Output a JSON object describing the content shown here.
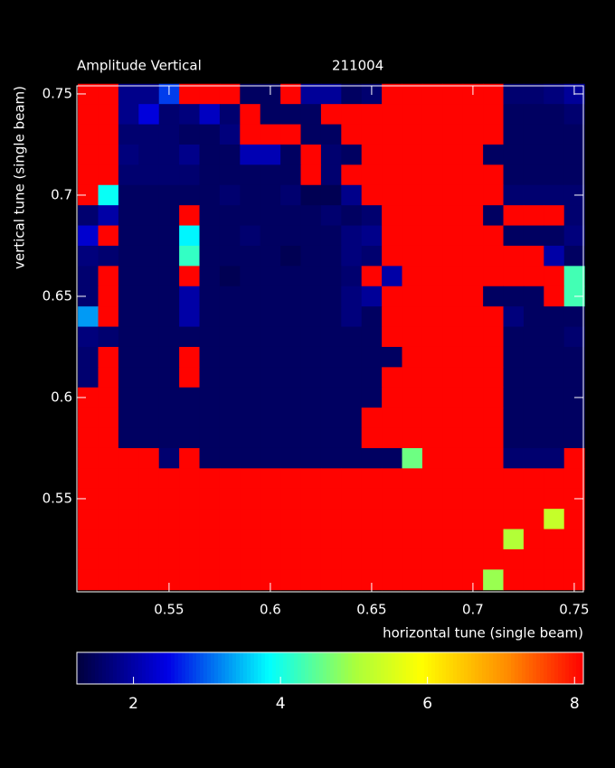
{
  "chart_data": {
    "type": "heatmap",
    "title": "Amplitude Vertical",
    "subtitle": "211004",
    "x_label": "horizontal tune (single beam)",
    "y_label": "vertical tune (single beam)",
    "colormap": "jet",
    "x": [
      0.51,
      0.52,
      0.53,
      0.54,
      0.55,
      0.56,
      0.57,
      0.58,
      0.59,
      0.6,
      0.61,
      0.62,
      0.63,
      0.64,
      0.65,
      0.66,
      0.67,
      0.68,
      0.69,
      0.7,
      0.71,
      0.72,
      0.73,
      0.74,
      0.75
    ],
    "y": [
      0.75,
      0.74,
      0.73,
      0.72,
      0.71,
      0.7,
      0.69,
      0.68,
      0.67,
      0.66,
      0.65,
      0.64,
      0.63,
      0.62,
      0.61,
      0.6,
      0.59,
      0.58,
      0.57,
      0.56,
      0.55,
      0.54,
      0.53,
      0.52,
      0.51
    ],
    "z": [
      [
        8.1,
        8.1,
        1.8,
        1.8,
        2.8,
        8.1,
        8.1,
        8.1,
        1.5,
        1.5,
        8.1,
        1.9,
        1.9,
        1.5,
        1.6,
        8.1,
        8.1,
        8.1,
        8.1,
        8.1,
        8.1,
        1.6,
        1.6,
        1.7,
        1.9
      ],
      [
        8.1,
        8.1,
        1.8,
        2.4,
        1.6,
        1.7,
        2.2,
        1.6,
        8.1,
        1.5,
        1.5,
        1.5,
        8.1,
        8.1,
        8.1,
        8.1,
        8.1,
        8.1,
        8.1,
        8.1,
        8.1,
        1.5,
        1.5,
        1.5,
        1.6
      ],
      [
        8.1,
        8.1,
        1.6,
        1.6,
        1.6,
        1.5,
        1.5,
        1.7,
        8.1,
        8.1,
        8.1,
        1.5,
        1.5,
        8.1,
        8.1,
        8.1,
        8.1,
        8.1,
        8.1,
        8.1,
        8.1,
        1.5,
        1.5,
        1.5,
        1.5
      ],
      [
        8.1,
        8.1,
        1.7,
        1.6,
        1.6,
        1.8,
        1.5,
        1.5,
        2.1,
        2.1,
        1.5,
        8.1,
        1.6,
        1.5,
        8.1,
        8.1,
        8.1,
        8.1,
        8.1,
        8.1,
        1.5,
        1.5,
        1.5,
        1.5,
        1.5
      ],
      [
        8.1,
        8.1,
        1.6,
        1.6,
        1.6,
        1.6,
        1.5,
        1.5,
        1.5,
        1.5,
        1.5,
        8.1,
        1.6,
        8.1,
        8.1,
        8.1,
        8.1,
        8.1,
        8.1,
        8.1,
        8.1,
        1.5,
        1.5,
        1.5,
        1.5
      ],
      [
        8.1,
        3.9,
        1.5,
        1.5,
        1.5,
        1.5,
        1.5,
        1.6,
        1.5,
        1.5,
        1.6,
        1.4,
        1.4,
        1.8,
        8.1,
        8.1,
        8.1,
        8.1,
        8.1,
        8.1,
        8.1,
        1.6,
        1.6,
        1.6,
        1.6
      ],
      [
        1.6,
        2.0,
        1.5,
        1.5,
        1.5,
        8.1,
        1.5,
        1.5,
        1.5,
        1.5,
        1.5,
        1.5,
        1.6,
        1.5,
        1.6,
        8.1,
        8.1,
        8.1,
        8.1,
        8.1,
        1.5,
        8.1,
        8.1,
        8.1,
        1.6
      ],
      [
        2.3,
        8.1,
        1.5,
        1.5,
        1.5,
        3.8,
        1.5,
        1.5,
        1.6,
        1.5,
        1.5,
        1.5,
        1.5,
        1.7,
        1.8,
        8.1,
        8.1,
        8.1,
        8.1,
        8.1,
        8.1,
        1.5,
        1.5,
        1.5,
        1.7
      ],
      [
        1.7,
        1.6,
        1.5,
        1.5,
        1.5,
        4.2,
        1.5,
        1.5,
        1.5,
        1.5,
        1.4,
        1.5,
        1.5,
        1.7,
        1.6,
        8.1,
        8.1,
        8.1,
        8.1,
        8.1,
        8.1,
        8.1,
        8.1,
        2.0,
        1.5
      ],
      [
        1.6,
        8.1,
        1.5,
        1.5,
        1.5,
        8.1,
        1.5,
        1.4,
        1.5,
        1.5,
        1.5,
        1.5,
        1.5,
        1.6,
        8.1,
        2.0,
        8.1,
        8.1,
        8.1,
        8.1,
        8.1,
        8.1,
        8.1,
        8.1,
        4.3
      ],
      [
        1.6,
        8.1,
        1.5,
        1.5,
        1.5,
        2.0,
        1.5,
        1.5,
        1.5,
        1.5,
        1.5,
        1.5,
        1.5,
        1.7,
        1.9,
        8.1,
        8.1,
        8.1,
        8.1,
        8.1,
        1.5,
        1.5,
        1.5,
        8.1,
        4.3
      ],
      [
        3.3,
        8.1,
        1.5,
        1.5,
        1.5,
        2.0,
        1.5,
        1.5,
        1.5,
        1.5,
        1.5,
        1.5,
        1.5,
        1.7,
        1.5,
        8.1,
        8.1,
        8.1,
        8.1,
        8.1,
        8.1,
        1.7,
        1.5,
        1.5,
        1.5
      ],
      [
        1.7,
        1.6,
        1.5,
        1.5,
        1.5,
        1.5,
        1.5,
        1.5,
        1.5,
        1.5,
        1.5,
        1.5,
        1.5,
        1.5,
        1.5,
        8.1,
        8.1,
        8.1,
        8.1,
        8.1,
        8.1,
        1.5,
        1.5,
        1.5,
        1.6
      ],
      [
        1.6,
        8.1,
        1.5,
        1.5,
        1.5,
        8.1,
        1.5,
        1.5,
        1.5,
        1.5,
        1.5,
        1.5,
        1.5,
        1.5,
        1.5,
        1.5,
        8.1,
        8.1,
        8.1,
        8.1,
        8.1,
        1.5,
        1.5,
        1.5,
        1.5
      ],
      [
        1.6,
        8.1,
        1.5,
        1.5,
        1.5,
        8.1,
        1.5,
        1.5,
        1.5,
        1.5,
        1.5,
        1.5,
        1.5,
        1.5,
        1.5,
        8.1,
        8.1,
        8.1,
        8.1,
        8.1,
        8.1,
        1.5,
        1.5,
        1.5,
        1.5
      ],
      [
        8.1,
        8.1,
        1.5,
        1.5,
        1.5,
        1.5,
        1.5,
        1.5,
        1.5,
        1.5,
        1.5,
        1.5,
        1.5,
        1.5,
        1.5,
        8.1,
        8.1,
        8.1,
        8.1,
        8.1,
        8.1,
        1.5,
        1.5,
        1.5,
        1.5
      ],
      [
        8.1,
        8.1,
        1.5,
        1.5,
        1.5,
        1.5,
        1.5,
        1.5,
        1.5,
        1.5,
        1.5,
        1.5,
        1.5,
        1.5,
        8.1,
        8.1,
        8.1,
        8.1,
        8.1,
        8.1,
        8.1,
        1.5,
        1.5,
        1.5,
        1.5
      ],
      [
        8.1,
        8.1,
        1.5,
        1.5,
        1.5,
        1.5,
        1.5,
        1.5,
        1.5,
        1.5,
        1.5,
        1.5,
        1.5,
        1.5,
        8.1,
        8.1,
        8.1,
        8.1,
        8.1,
        8.1,
        8.1,
        1.5,
        1.5,
        1.5,
        1.5
      ],
      [
        8.1,
        8.1,
        8.1,
        8.1,
        1.6,
        8.1,
        1.5,
        1.5,
        1.5,
        1.5,
        1.5,
        1.5,
        1.5,
        1.5,
        1.5,
        1.5,
        4.6,
        8.1,
        8.1,
        8.1,
        8.1,
        1.6,
        1.6,
        1.6,
        8.1
      ],
      [
        8.1,
        8.1,
        8.1,
        8.1,
        8.1,
        8.1,
        8.1,
        8.1,
        8.1,
        8.1,
        8.1,
        8.1,
        8.1,
        8.1,
        8.1,
        8.1,
        8.1,
        8.1,
        8.1,
        8.1,
        8.1,
        8.1,
        8.1,
        8.1,
        8.1
      ],
      [
        8.1,
        8.1,
        8.1,
        8.1,
        8.1,
        8.1,
        8.1,
        8.1,
        8.1,
        8.1,
        8.1,
        8.1,
        8.1,
        8.1,
        8.1,
        8.1,
        8.1,
        8.1,
        8.1,
        8.1,
        8.1,
        8.1,
        8.1,
        8.1,
        8.1
      ],
      [
        8.1,
        8.1,
        8.1,
        8.1,
        8.1,
        8.1,
        8.1,
        8.1,
        8.1,
        8.1,
        8.1,
        8.1,
        8.1,
        8.1,
        8.1,
        8.1,
        8.1,
        8.1,
        8.1,
        8.1,
        8.1,
        8.1,
        8.1,
        5.3,
        8.1
      ],
      [
        8.1,
        8.1,
        8.1,
        8.1,
        8.1,
        8.1,
        8.1,
        8.1,
        8.1,
        8.1,
        8.1,
        8.1,
        8.1,
        8.1,
        8.1,
        8.1,
        8.1,
        8.1,
        8.1,
        8.1,
        8.1,
        5.1,
        8.1,
        8.1,
        8.1
      ],
      [
        8.1,
        8.1,
        8.1,
        8.1,
        8.1,
        8.1,
        8.1,
        8.1,
        8.1,
        8.1,
        8.1,
        8.1,
        8.1,
        8.1,
        8.1,
        8.1,
        8.1,
        8.1,
        8.1,
        8.1,
        8.1,
        8.1,
        8.1,
        8.1,
        8.1
      ],
      [
        8.1,
        8.1,
        8.1,
        8.1,
        8.1,
        8.1,
        8.1,
        8.1,
        8.1,
        8.1,
        8.1,
        8.1,
        8.1,
        8.1,
        8.1,
        8.1,
        8.1,
        8.1,
        8.1,
        8.1,
        4.9,
        8.1,
        8.1,
        8.1,
        8.1
      ]
    ],
    "xlim": [
      0.5045,
      0.7545
    ],
    "xticks": [
      0.55,
      0.6,
      0.65,
      0.7,
      0.75
    ],
    "ylim": [
      0.504,
      0.754
    ],
    "yticks": [
      0.55,
      0.6,
      0.65,
      0.7,
      0.75
    ],
    "zlim": [
      1.23,
      8.12
    ],
    "zticks": [
      2,
      4,
      6,
      8
    ]
  }
}
